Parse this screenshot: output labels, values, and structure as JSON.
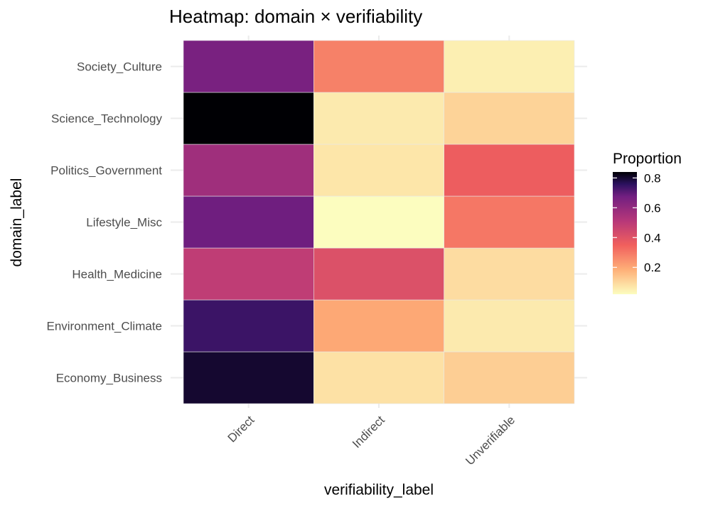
{
  "chart_data": {
    "type": "heatmap",
    "title": "Heatmap: domain × verifiability",
    "xlabel": "verifiability_label",
    "ylabel": "domain_label",
    "x_categories": [
      "Direct",
      "Indirect",
      "Unverifiable"
    ],
    "y_categories": [
      "Economy_Business",
      "Environment_Climate",
      "Health_Medicine",
      "Lifestyle_Misc",
      "Politics_Government",
      "Science_Technology",
      "Society_Culture"
    ],
    "values": [
      [
        0.8,
        0.08,
        0.12
      ],
      [
        0.74,
        0.2,
        0.06
      ],
      [
        0.49,
        0.41,
        0.09
      ],
      [
        0.68,
        0.02,
        0.3
      ],
      [
        0.57,
        0.07,
        0.36
      ],
      [
        0.84,
        0.06,
        0.11
      ],
      [
        0.66,
        0.28,
        0.05
      ]
    ],
    "legend": {
      "title": "Proportion",
      "ticks": [
        0.2,
        0.4,
        0.6,
        0.8
      ],
      "tick_labels": [
        "0.2",
        "0.4",
        "0.6",
        "0.8"
      ],
      "range": [
        0.02,
        0.84
      ],
      "position": "right"
    },
    "colormap": "magma",
    "grid": true
  }
}
